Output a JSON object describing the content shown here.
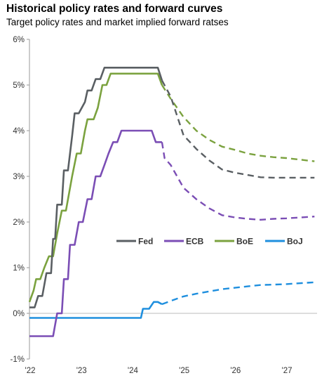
{
  "header": {
    "title": "Historical policy rates and forward curves",
    "subtitle": "Target policy rates and market implied forward ratses"
  },
  "chart_data": {
    "type": "line",
    "title": "Historical policy rates and forward curves",
    "subtitle": "Target policy rates and market implied forward ratses",
    "xlabel": "",
    "ylabel": "",
    "x_unit": "year",
    "xlim": [
      2022.0,
      2027.6
    ],
    "ylim": [
      -1,
      6
    ],
    "y_ticks": [
      -1,
      0,
      1,
      2,
      3,
      4,
      5,
      6
    ],
    "y_tick_labels": [
      "-1%",
      "0%",
      "1%",
      "2%",
      "3%",
      "4%",
      "5%",
      "6%"
    ],
    "x_ticks": [
      2022,
      2023,
      2024,
      2025,
      2026,
      2027
    ],
    "x_tick_labels": [
      "'22",
      "'23",
      "'24",
      "'25",
      "'26",
      "'27"
    ],
    "grid": false,
    "legend_position": "center-right",
    "historical_style": "solid",
    "forward_style": "dashed",
    "series": [
      {
        "name": "Fed",
        "color": "#5a5f63",
        "historical": [
          [
            2022.0,
            0.13
          ],
          [
            2022.1,
            0.13
          ],
          [
            2022.17,
            0.38
          ],
          [
            2022.25,
            0.38
          ],
          [
            2022.33,
            0.88
          ],
          [
            2022.42,
            0.88
          ],
          [
            2022.46,
            1.63
          ],
          [
            2022.5,
            1.63
          ],
          [
            2022.54,
            2.38
          ],
          [
            2022.63,
            2.38
          ],
          [
            2022.67,
            3.13
          ],
          [
            2022.75,
            3.13
          ],
          [
            2022.83,
            3.88
          ],
          [
            2022.88,
            4.38
          ],
          [
            2022.96,
            4.38
          ],
          [
            2023.08,
            4.63
          ],
          [
            2023.13,
            4.88
          ],
          [
            2023.21,
            4.88
          ],
          [
            2023.29,
            5.13
          ],
          [
            2023.38,
            5.13
          ],
          [
            2023.46,
            5.38
          ],
          [
            2024.42,
            5.38
          ],
          [
            2024.5,
            5.38
          ],
          [
            2024.58,
            5.1
          ]
        ],
        "forward": [
          [
            2024.58,
            5.1
          ],
          [
            2024.75,
            4.75
          ],
          [
            2025.0,
            3.9
          ],
          [
            2025.25,
            3.6
          ],
          [
            2025.5,
            3.35
          ],
          [
            2025.75,
            3.15
          ],
          [
            2026.0,
            3.08
          ],
          [
            2026.25,
            3.03
          ],
          [
            2026.5,
            2.98
          ],
          [
            2026.75,
            2.97
          ],
          [
            2027.0,
            2.97
          ],
          [
            2027.55,
            2.97
          ]
        ]
      },
      {
        "name": "ECB",
        "color": "#7b4eb5",
        "historical": [
          [
            2022.0,
            -0.5
          ],
          [
            2022.46,
            -0.5
          ],
          [
            2022.54,
            0.0
          ],
          [
            2022.63,
            0.0
          ],
          [
            2022.67,
            0.75
          ],
          [
            2022.75,
            0.75
          ],
          [
            2022.79,
            1.5
          ],
          [
            2022.88,
            1.5
          ],
          [
            2022.96,
            2.0
          ],
          [
            2023.04,
            2.0
          ],
          [
            2023.13,
            2.5
          ],
          [
            2023.21,
            2.5
          ],
          [
            2023.29,
            3.0
          ],
          [
            2023.38,
            3.0
          ],
          [
            2023.46,
            3.25
          ],
          [
            2023.54,
            3.5
          ],
          [
            2023.63,
            3.75
          ],
          [
            2023.71,
            3.75
          ],
          [
            2023.79,
            4.0
          ],
          [
            2024.38,
            4.0
          ],
          [
            2024.46,
            3.75
          ],
          [
            2024.58,
            3.75
          ]
        ],
        "forward": [
          [
            2024.58,
            3.75
          ],
          [
            2024.63,
            3.4
          ],
          [
            2024.75,
            3.25
          ],
          [
            2025.0,
            2.75
          ],
          [
            2025.25,
            2.5
          ],
          [
            2025.5,
            2.3
          ],
          [
            2025.75,
            2.15
          ],
          [
            2026.0,
            2.1
          ],
          [
            2026.25,
            2.07
          ],
          [
            2026.5,
            2.05
          ],
          [
            2026.75,
            2.07
          ],
          [
            2027.0,
            2.08
          ],
          [
            2027.55,
            2.12
          ]
        ]
      },
      {
        "name": "BoE",
        "color": "#7ba23f",
        "historical": [
          [
            2022.0,
            0.25
          ],
          [
            2022.08,
            0.5
          ],
          [
            2022.13,
            0.75
          ],
          [
            2022.21,
            0.75
          ],
          [
            2022.29,
            1.0
          ],
          [
            2022.38,
            1.25
          ],
          [
            2022.46,
            1.25
          ],
          [
            2022.54,
            1.75
          ],
          [
            2022.63,
            2.25
          ],
          [
            2022.71,
            2.25
          ],
          [
            2022.83,
            3.0
          ],
          [
            2022.92,
            3.5
          ],
          [
            2023.0,
            3.5
          ],
          [
            2023.08,
            4.0
          ],
          [
            2023.13,
            4.25
          ],
          [
            2023.25,
            4.25
          ],
          [
            2023.33,
            4.5
          ],
          [
            2023.42,
            5.0
          ],
          [
            2023.5,
            5.0
          ],
          [
            2023.58,
            5.25
          ],
          [
            2024.5,
            5.25
          ],
          [
            2024.58,
            5.0
          ]
        ],
        "forward": [
          [
            2024.58,
            5.0
          ],
          [
            2024.75,
            4.7
          ],
          [
            2025.0,
            4.3
          ],
          [
            2025.25,
            4.0
          ],
          [
            2025.5,
            3.8
          ],
          [
            2025.75,
            3.65
          ],
          [
            2026.0,
            3.58
          ],
          [
            2026.25,
            3.5
          ],
          [
            2026.5,
            3.45
          ],
          [
            2026.75,
            3.42
          ],
          [
            2027.0,
            3.4
          ],
          [
            2027.55,
            3.33
          ]
        ]
      },
      {
        "name": "BoJ",
        "color": "#1f8fde",
        "historical": [
          [
            2022.0,
            -0.1
          ],
          [
            2024.17,
            -0.1
          ],
          [
            2024.21,
            0.1
          ],
          [
            2024.33,
            0.1
          ],
          [
            2024.42,
            0.25
          ],
          [
            2024.5,
            0.25
          ],
          [
            2024.58,
            0.2
          ]
        ],
        "forward": [
          [
            2024.58,
            0.2
          ],
          [
            2024.75,
            0.27
          ],
          [
            2025.0,
            0.37
          ],
          [
            2025.25,
            0.43
          ],
          [
            2025.5,
            0.48
          ],
          [
            2025.75,
            0.53
          ],
          [
            2026.0,
            0.56
          ],
          [
            2026.25,
            0.59
          ],
          [
            2026.5,
            0.62
          ],
          [
            2026.75,
            0.63
          ],
          [
            2027.0,
            0.64
          ],
          [
            2027.55,
            0.68
          ]
        ]
      }
    ]
  }
}
